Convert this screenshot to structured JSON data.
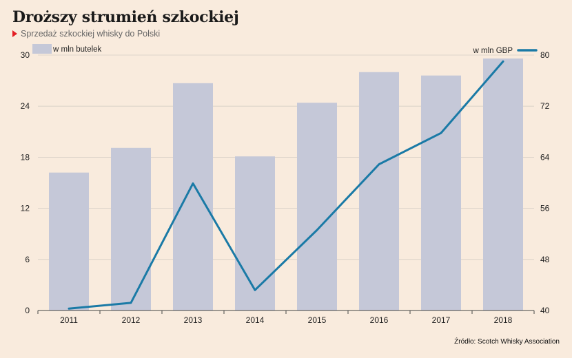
{
  "header": {
    "title": "Droższy strumień szkockiej",
    "subtitle": "Sprzedaż szkockiej whisky do Polski"
  },
  "source": "Źródło: Scotch Whisky Association",
  "colors": {
    "background": "#f9ebdd",
    "bar": "#c5c8d8",
    "line": "#1a7aa6",
    "accent": "#e31e24"
  },
  "chart_data": {
    "type": "bar",
    "categories": [
      "2011",
      "2012",
      "2013",
      "2014",
      "2015",
      "2016",
      "2017",
      "2018"
    ],
    "series": [
      {
        "name": "w mln butelek",
        "type": "bar",
        "axis": "left",
        "values": [
          16.2,
          19.1,
          26.7,
          18.1,
          24.4,
          28.0,
          27.6,
          29.6
        ]
      },
      {
        "name": "w mln GBP",
        "type": "line",
        "axis": "right",
        "values": [
          40.3,
          41.2,
          59.9,
          43.2,
          52.6,
          62.9,
          67.8,
          79.0
        ]
      }
    ],
    "y_left": {
      "ylim": [
        0,
        30
      ],
      "ticks": [
        0,
        6,
        12,
        18,
        24,
        30
      ]
    },
    "y_right": {
      "ylim": [
        40,
        80
      ],
      "ticks": [
        40,
        48,
        56,
        64,
        72,
        80
      ]
    },
    "legend": [
      "w mln butelek",
      "w mln GBP"
    ],
    "grid": true
  }
}
